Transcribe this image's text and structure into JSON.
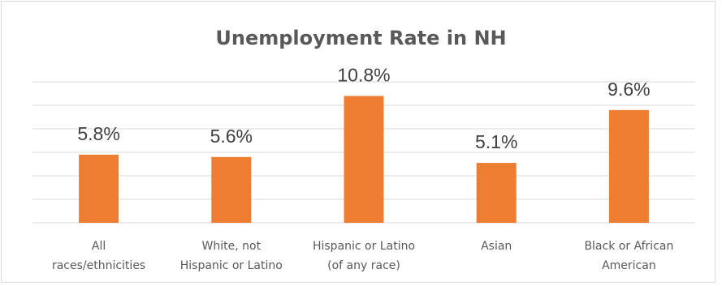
{
  "chart_data": {
    "type": "bar",
    "title": "Unemployment Rate in NH",
    "categories": [
      [
        "All",
        "races/ethnicities"
      ],
      [
        "White, not",
        "Hispanic or Latino"
      ],
      [
        "Hispanic or Latino",
        "(of any race)"
      ],
      [
        "Asian"
      ],
      [
        "Black or African",
        "American"
      ]
    ],
    "values": [
      5.8,
      5.6,
      10.8,
      5.1,
      9.6
    ],
    "data_labels": [
      "5.8%",
      "5.6%",
      "10.8%",
      "5.1%",
      "9.6%"
    ],
    "xlabel": "",
    "ylabel": "",
    "ylim": [
      0,
      12
    ],
    "gridlines": true,
    "axis_tick_labels_visible": false,
    "legend": "none",
    "colors": {
      "bar": "#ed7d31",
      "grid": "#d9d9d9",
      "text": "#595959",
      "data_label": "#404040"
    }
  }
}
